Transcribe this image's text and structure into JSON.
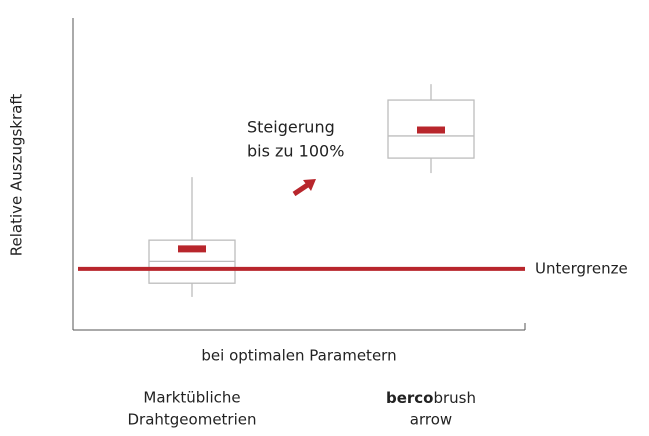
{
  "chart_data": {
    "type": "box",
    "ylabel": "Relative Auszugskraft",
    "xlabel": "bei optimalen Parametern",
    "categories": [
      [
        "Marktübliche",
        "Drahtgeometrien"
      ],
      [
        [
          "berco",
          "brush"
        ],
        "arrow"
      ]
    ],
    "series": [
      {
        "color": "#b8262c",
        "box_color": "#bdbdbd",
        "whisker_low": [
          10.6,
          50.3
        ],
        "q1": [
          15,
          55.1
        ],
        "median": [
          22,
          62.2
        ],
        "q3": [
          28.8,
          73.7
        ],
        "whisker_high": [
          49,
          78.8
        ],
        "mean": [
          26,
          64.1
        ]
      }
    ],
    "reference_line": {
      "label": "Untergrenze",
      "value": 19.6,
      "color": "#b8262c"
    },
    "annotation": [
      "Steigerung",
      "bis zu 100%"
    ],
    "ylim": [
      0,
      100
    ]
  }
}
